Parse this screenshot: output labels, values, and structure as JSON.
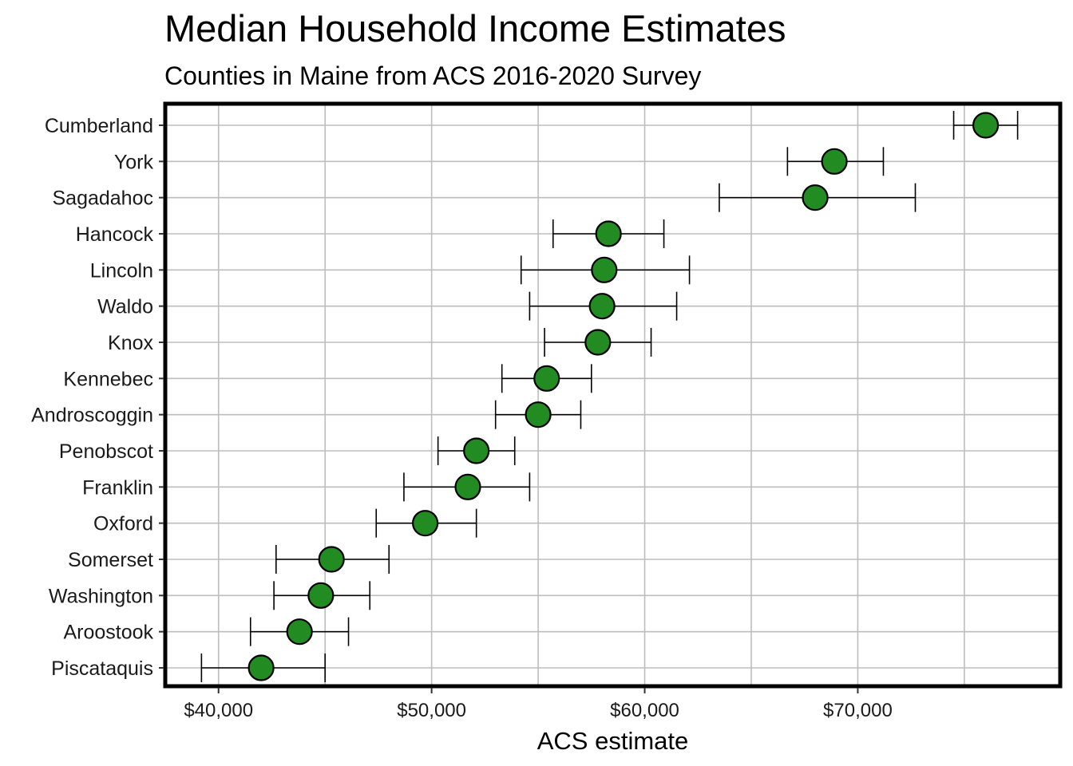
{
  "chart_data": {
    "type": "scatter",
    "title": "Median Household Income Estimates",
    "subtitle": "Counties in Maine from ACS 2016-2020 Survey",
    "xlabel": "ACS estimate",
    "ylabel": "",
    "xlim": [
      37500,
      79500
    ],
    "x_ticks": [
      40000,
      50000,
      60000,
      70000
    ],
    "x_tick_labels": [
      "$40,000",
      "$50,000",
      "$60,000",
      "$70,000"
    ],
    "grid": true,
    "point_color": "#228B22",
    "points": [
      {
        "category": "Cumberland",
        "estimate": 76000,
        "low": 74500,
        "high": 77500
      },
      {
        "category": "York",
        "estimate": 68900,
        "low": 66700,
        "high": 71200
      },
      {
        "category": "Sagadahoc",
        "estimate": 68000,
        "low": 63500,
        "high": 72700
      },
      {
        "category": "Hancock",
        "estimate": 58300,
        "low": 55700,
        "high": 60900
      },
      {
        "category": "Lincoln",
        "estimate": 58100,
        "low": 54200,
        "high": 62100
      },
      {
        "category": "Waldo",
        "estimate": 58000,
        "low": 54600,
        "high": 61500
      },
      {
        "category": "Knox",
        "estimate": 57800,
        "low": 55300,
        "high": 60300
      },
      {
        "category": "Kennebec",
        "estimate": 55400,
        "low": 53300,
        "high": 57500
      },
      {
        "category": "Androscoggin",
        "estimate": 55000,
        "low": 53000,
        "high": 57000
      },
      {
        "category": "Penobscot",
        "estimate": 52100,
        "low": 50300,
        "high": 53900
      },
      {
        "category": "Franklin",
        "estimate": 51700,
        "low": 48700,
        "high": 54600
      },
      {
        "category": "Oxford",
        "estimate": 49700,
        "low": 47400,
        "high": 52100
      },
      {
        "category": "Somerset",
        "estimate": 45300,
        "low": 42700,
        "high": 48000
      },
      {
        "category": "Washington",
        "estimate": 44800,
        "low": 42600,
        "high": 47100
      },
      {
        "category": "Aroostook",
        "estimate": 43800,
        "low": 41500,
        "high": 46100
      },
      {
        "category": "Piscataquis",
        "estimate": 42000,
        "low": 39200,
        "high": 45000
      }
    ]
  }
}
